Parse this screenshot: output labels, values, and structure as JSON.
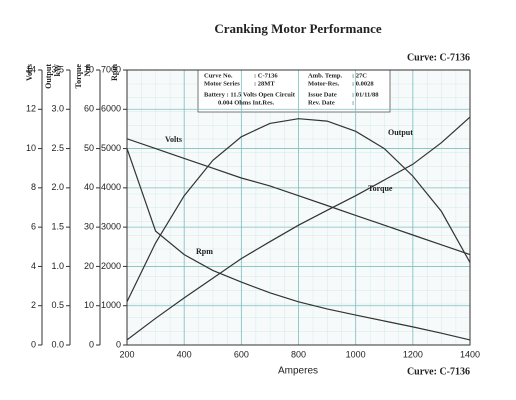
{
  "chart_data": {
    "type": "line",
    "title": "Cranking Motor Performance",
    "curve_label": "Curve: C-7136",
    "info_box": [
      {
        "left": [
          "Curve No.",
          ": C-7136"
        ],
        "right": [
          "Amb. Temp.",
          ": 27C"
        ]
      },
      {
        "left": [
          "Motor Series",
          ": 28MT"
        ],
        "right": [
          "Motor-Res.",
          ": 0.0028"
        ]
      },
      {
        "left": [
          "Battery : 11.5 Volts Open Circuit"
        ],
        "right": [
          "Issue Date",
          ": 01/11/88"
        ]
      },
      {
        "left": [
          "0.004 Ohms Int.Res."
        ],
        "right": [
          "Rev. Date",
          ":"
        ]
      }
    ],
    "xlabel": "Amperes",
    "xlim": [
      200,
      1400
    ],
    "xticks": [
      200,
      400,
      600,
      800,
      1000,
      1200,
      1400
    ],
    "axes": [
      {
        "title": [
          "Volts"
        ],
        "ylim": [
          0,
          14
        ],
        "yticks": [
          0,
          2,
          4,
          6,
          8,
          10,
          12,
          14
        ]
      },
      {
        "title": [
          "Output",
          "kW"
        ],
        "ylim": [
          0,
          3.5
        ],
        "yticks": [
          {
            "value": 0,
            "label": "0.0"
          },
          0.5,
          {
            "value": 1,
            "label": "1.0"
          },
          1.5,
          {
            "value": 2,
            "label": "2.0"
          },
          2.5,
          {
            "value": 3,
            "label": "3.0"
          },
          3.5
        ]
      },
      {
        "title": [
          "Torque",
          "Nm"
        ],
        "ylim": [
          0,
          70
        ],
        "yticks": [
          0,
          10,
          20,
          30,
          40,
          50,
          60,
          70
        ]
      },
      {
        "title": [
          "Rpm"
        ],
        "ylim": [
          0,
          7000
        ],
        "yticks": [
          0,
          1000,
          2000,
          3000,
          4000,
          5000,
          6000,
          7000
        ]
      }
    ],
    "x": [
      200,
      300,
      400,
      500,
      600,
      700,
      800,
      900,
      1000,
      1100,
      1200,
      1300,
      1400
    ],
    "series": [
      {
        "name": "Volts",
        "axis": 0,
        "color": "#333333",
        "values": [
          10.5,
          10.0,
          9.5,
          9.0,
          8.5,
          8.1,
          7.6,
          7.1,
          6.6,
          6.1,
          5.6,
          5.1,
          4.6
        ]
      },
      {
        "name": "Output",
        "axis": 1,
        "color": "#333333",
        "values": [
          0.55,
          1.3,
          1.9,
          2.35,
          2.65,
          2.82,
          2.88,
          2.85,
          2.72,
          2.5,
          2.15,
          1.7,
          1.05
        ]
      },
      {
        "name": "Torque",
        "axis": 2,
        "color": "#333333",
        "values": [
          1.3,
          6.8,
          12,
          17,
          22,
          26.3,
          30.5,
          34.3,
          38,
          42,
          46,
          51.5,
          58
        ]
      },
      {
        "name": "Rpm",
        "axis": 3,
        "color": "#333333",
        "values": [
          5000,
          2900,
          2300,
          1900,
          1600,
          1330,
          1100,
          920,
          760,
          610,
          460,
          300,
          130
        ]
      }
    ],
    "grid": true
  }
}
